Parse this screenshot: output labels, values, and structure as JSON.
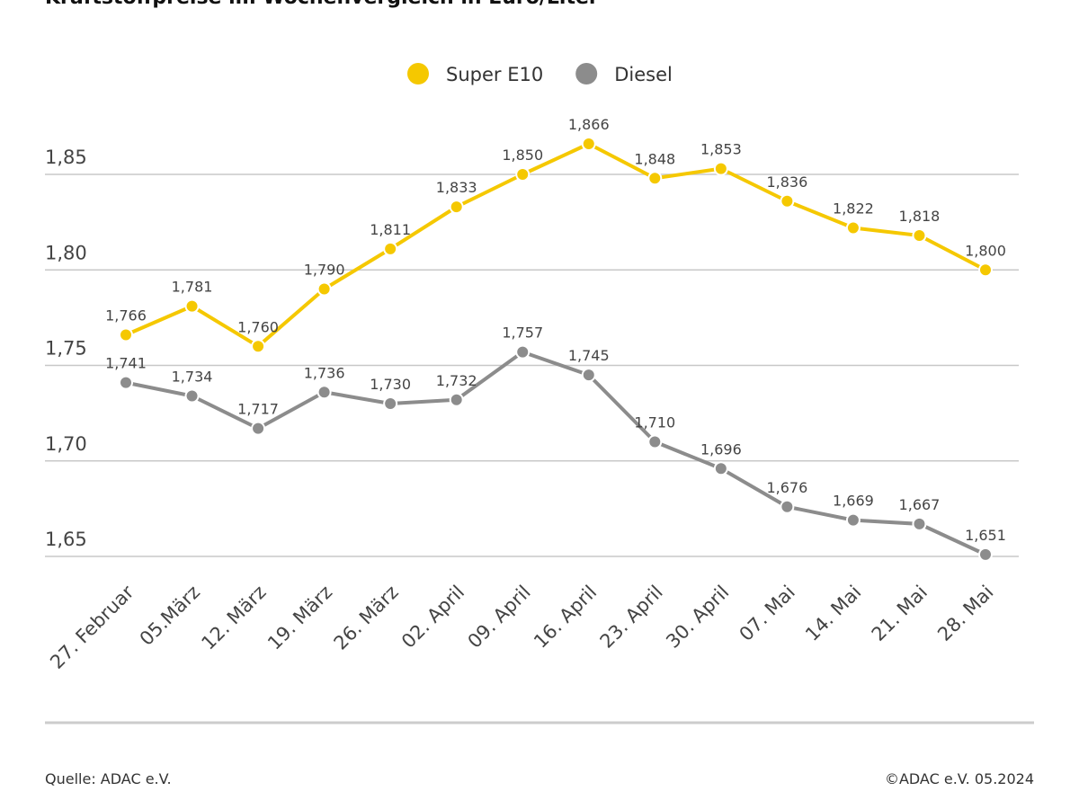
{
  "chart_data": {
    "type": "line",
    "title": "Kraftstoffpreise im Wochenvergleich in Euro/Liter",
    "categories": [
      "27. Februar",
      "05.März",
      "12. März",
      "19. März",
      "26. März",
      "02. April",
      "09. April",
      "16. April",
      "23. April",
      "30. April",
      "07. Mai",
      "14. Mai",
      "21. Mai",
      "28. Mai"
    ],
    "series": [
      {
        "name": "Super E10",
        "color": "#f5c800",
        "values": [
          1.766,
          1.781,
          1.76,
          1.79,
          1.811,
          1.833,
          1.85,
          1.866,
          1.848,
          1.853,
          1.836,
          1.822,
          1.818,
          1.8
        ],
        "value_labels": [
          "1,766",
          "1,781",
          "1,760",
          "1,790",
          "1,811",
          "1,833",
          "1,850",
          "1,866",
          "1,848",
          "1,853",
          "1,836",
          "1,822",
          "1,818",
          "1,800"
        ]
      },
      {
        "name": "Diesel",
        "color": "#8c8c8c",
        "values": [
          1.741,
          1.734,
          1.717,
          1.736,
          1.73,
          1.732,
          1.757,
          1.745,
          1.71,
          1.696,
          1.676,
          1.669,
          1.667,
          1.651
        ],
        "value_labels": [
          "1,741",
          "1,734",
          "1,717",
          "1,736",
          "1,730",
          "1,732",
          "1,757",
          "1,745",
          "1,710",
          "1,696",
          "1,676",
          "1,669",
          "1,667",
          "1,651"
        ]
      }
    ],
    "ylim": [
      1.65,
      1.9
    ],
    "yticks": [
      {
        "value": 1.65,
        "label": "1,65"
      },
      {
        "value": 1.7,
        "label": "1,70"
      },
      {
        "value": 1.75,
        "label": "1,75"
      },
      {
        "value": 1.8,
        "label": "1,80"
      },
      {
        "value": 1.85,
        "label": "1,85"
      }
    ],
    "grid": true,
    "legend": "top",
    "source": "Quelle: ADAC e.V.",
    "copyright": "©ADAC e.V. 05.2024"
  }
}
